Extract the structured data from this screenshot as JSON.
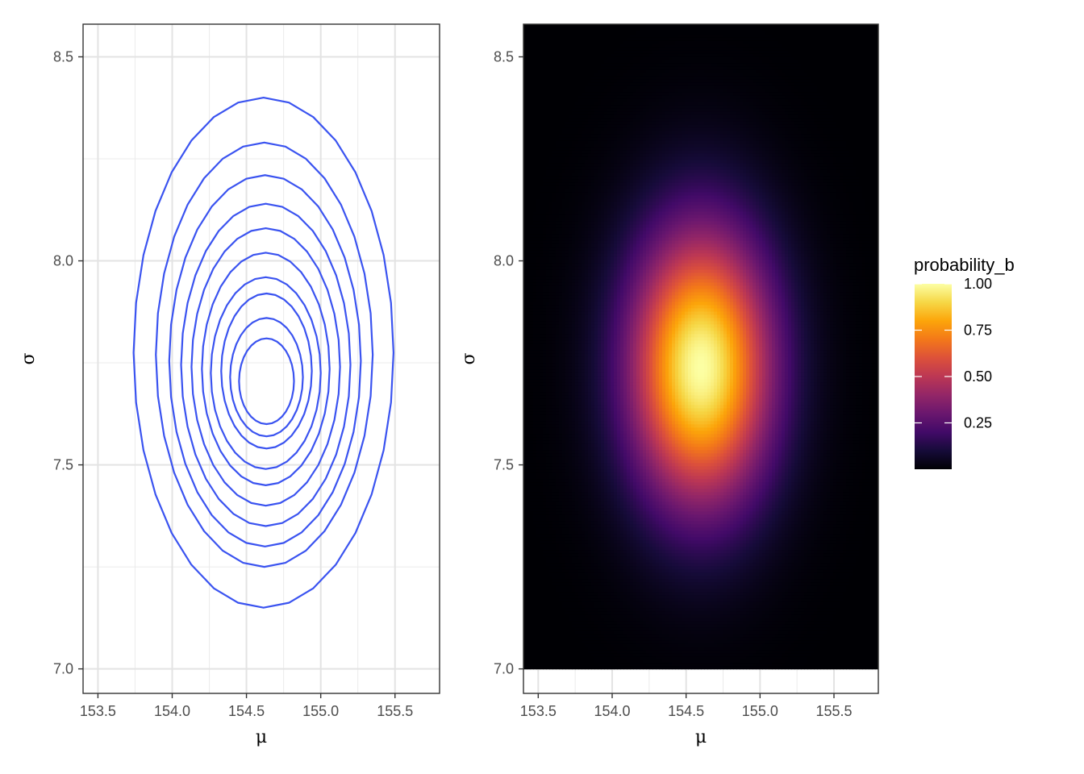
{
  "chart_data": [
    {
      "type": "contour",
      "xlabel": "μ",
      "ylabel": "σ",
      "xlim": [
        153.4,
        155.8
      ],
      "ylim": [
        6.94,
        8.58
      ],
      "x_ticks": [
        153.5,
        154.0,
        154.5,
        155.0,
        155.5
      ],
      "x_tick_labels": [
        "153.5",
        "154.0",
        "154.5",
        "155.0",
        "155.5"
      ],
      "y_ticks": [
        7.0,
        7.5,
        8.0,
        8.5
      ],
      "y_tick_labels": [
        "7.0",
        "7.5",
        "8.0",
        "8.5"
      ],
      "grid": true,
      "line_color": "#3a53f0",
      "density": {
        "mu_center": 154.6,
        "sigma_center": 7.74,
        "mu_sd": 0.335,
        "sigma_sd": 0.235
      },
      "contours": [
        {
          "mu_range": [
            153.74,
            155.49
          ],
          "sigma_range": [
            7.15,
            8.4
          ]
        },
        {
          "mu_range": [
            153.89,
            155.35
          ],
          "sigma_range": [
            7.25,
            8.29
          ]
        },
        {
          "mu_range": [
            153.98,
            155.27
          ],
          "sigma_range": [
            7.3,
            8.21
          ]
        },
        {
          "mu_range": [
            154.06,
            155.2
          ],
          "sigma_range": [
            7.35,
            8.14
          ]
        },
        {
          "mu_range": [
            154.13,
            155.13
          ],
          "sigma_range": [
            7.4,
            8.08
          ]
        },
        {
          "mu_range": [
            154.2,
            155.06
          ],
          "sigma_range": [
            7.45,
            8.02
          ]
        },
        {
          "mu_range": [
            154.26,
            155.0
          ],
          "sigma_range": [
            7.49,
            7.96
          ]
        },
        {
          "mu_range": [
            154.33,
            154.94
          ],
          "sigma_range": [
            7.54,
            7.92
          ]
        },
        {
          "mu_range": [
            154.39,
            154.88
          ],
          "sigma_range": [
            7.57,
            7.86
          ]
        },
        {
          "mu_range": [
            154.45,
            154.82
          ],
          "sigma_range": [
            7.6,
            7.81
          ]
        }
      ]
    },
    {
      "type": "heatmap",
      "xlabel": "μ",
      "ylabel": "σ",
      "xlim": [
        153.4,
        155.8
      ],
      "ylim": [
        6.94,
        8.58
      ],
      "x_ticks": [
        153.5,
        154.0,
        154.5,
        155.0,
        155.5
      ],
      "x_tick_labels": [
        "153.5",
        "154.0",
        "154.5",
        "155.0",
        "155.5"
      ],
      "y_ticks": [
        7.0,
        7.5,
        8.0,
        8.5
      ],
      "y_tick_labels": [
        "7.0",
        "7.5",
        "8.0",
        "8.5"
      ],
      "grid": true,
      "tile_extent": {
        "mu": [
          153.4,
          155.8
        ],
        "sigma": [
          7.0,
          8.58
        ]
      },
      "density": {
        "mu_center": 154.6,
        "sigma_center": 7.74,
        "mu_sd": 0.335,
        "sigma_sd": 0.235
      },
      "fill_scale": "inferno",
      "legend": {
        "title": "probability_b",
        "placement": "right",
        "breaks": [
          1.0,
          0.75,
          0.5,
          0.25
        ],
        "labels": [
          "1.00",
          "0.75",
          "0.50",
          "0.25"
        ],
        "range": [
          0.0,
          1.0
        ]
      }
    }
  ]
}
